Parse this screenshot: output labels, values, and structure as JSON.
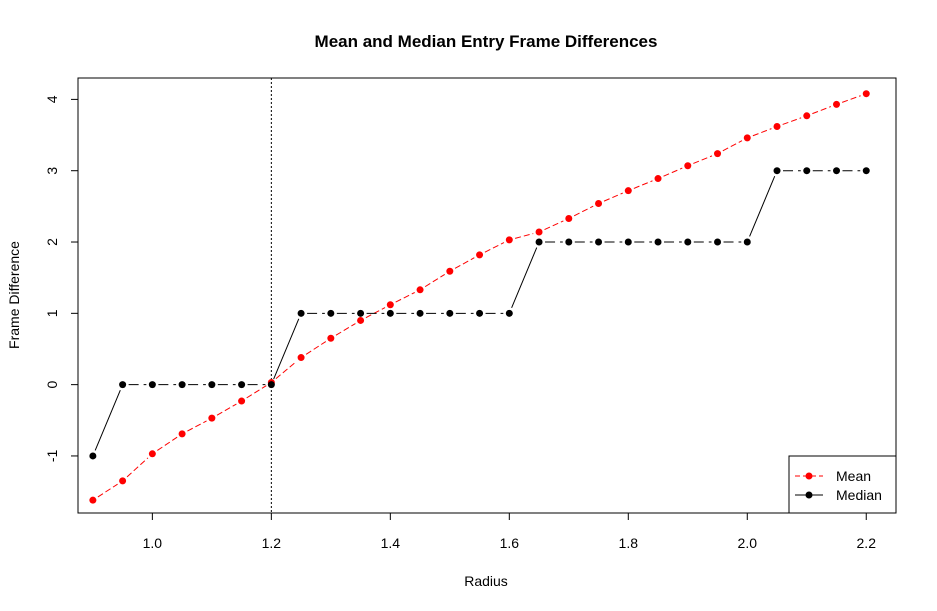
{
  "chart_data": {
    "type": "line",
    "title": "Mean and Median Entry Frame Differences",
    "xlabel": "Radius",
    "ylabel": "Frame Difference",
    "xlim": [
      0.875,
      2.25
    ],
    "ylim": [
      -1.8,
      4.3
    ],
    "x_ticks": [
      "1.0",
      "1.2",
      "1.4",
      "1.6",
      "1.8",
      "2.0",
      "2.2"
    ],
    "x_tick_values": [
      1.0,
      1.2,
      1.4,
      1.6,
      1.8,
      2.0,
      2.2
    ],
    "y_ticks": [
      "-1",
      "0",
      "1",
      "2",
      "3",
      "4"
    ],
    "y_tick_values": [
      -1,
      0,
      1,
      2,
      3,
      4
    ],
    "vline_x": 1.2,
    "x": [
      0.9,
      0.95,
      1.0,
      1.05,
      1.1,
      1.15,
      1.2,
      1.25,
      1.3,
      1.35,
      1.4,
      1.45,
      1.5,
      1.55,
      1.6,
      1.65,
      1.7,
      1.75,
      1.8,
      1.85,
      1.9,
      1.95,
      2.0,
      2.05,
      2.1,
      2.15,
      2.2
    ],
    "series": [
      {
        "name": "Mean",
        "color": "#ff0000",
        "line_style": "dashed",
        "values": [
          -1.62,
          -1.35,
          -0.97,
          -0.69,
          -0.47,
          -0.23,
          0.03,
          0.38,
          0.65,
          0.9,
          1.12,
          1.33,
          1.59,
          1.82,
          2.03,
          2.14,
          2.33,
          2.54,
          2.72,
          2.89,
          3.07,
          3.24,
          3.46,
          3.62,
          3.77,
          3.93,
          4.08
        ]
      },
      {
        "name": "Median",
        "color": "#000000",
        "line_style": "solid-dashed",
        "values": [
          -1,
          0,
          0,
          0,
          0,
          0,
          0,
          1,
          1,
          1,
          1,
          1,
          1,
          1,
          1,
          2,
          2,
          2,
          2,
          2,
          2,
          2,
          2,
          3,
          3,
          3,
          3
        ]
      }
    ],
    "legend": {
      "position": "bottom-right",
      "entries": [
        "Mean",
        "Median"
      ]
    }
  }
}
